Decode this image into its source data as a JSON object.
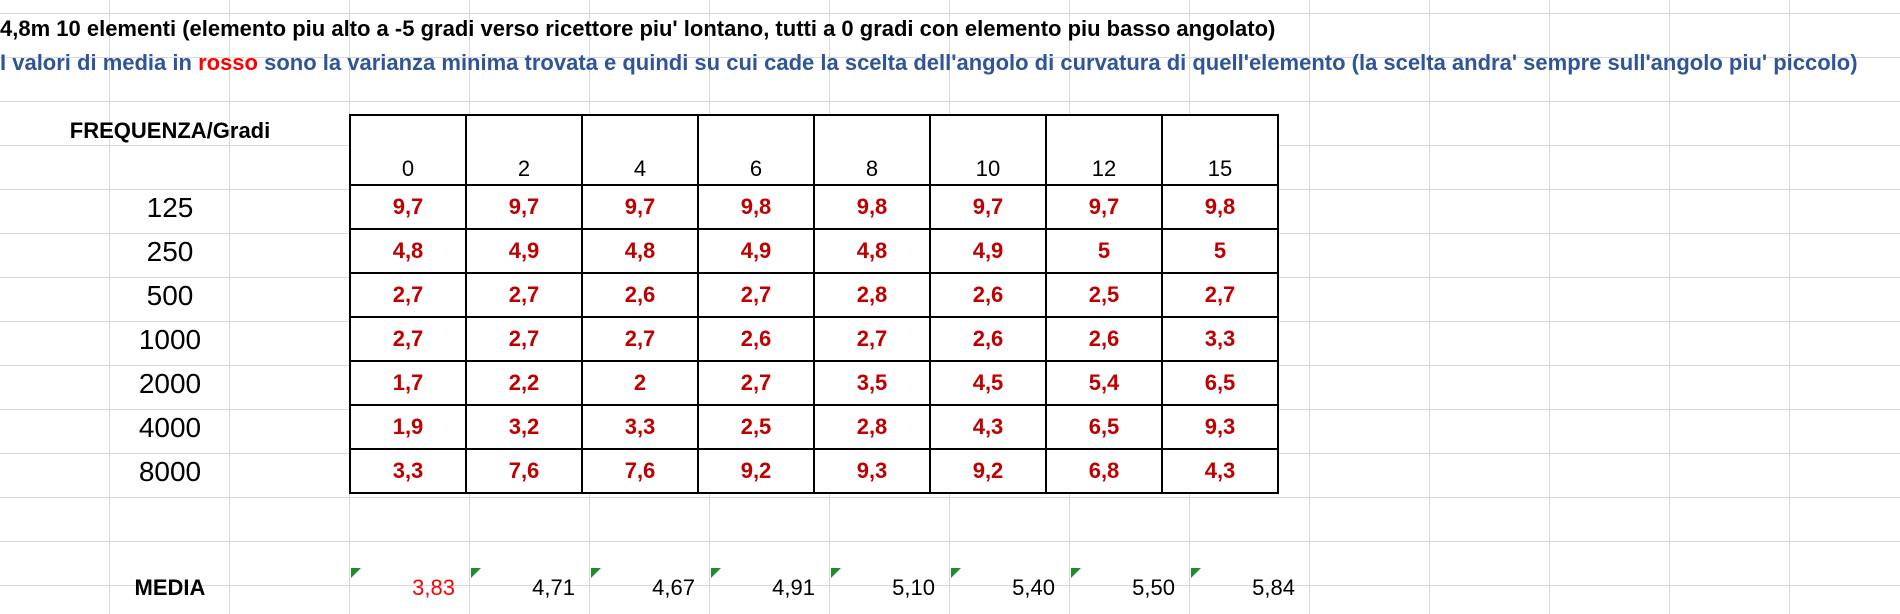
{
  "sheet": {
    "title_line": "4,8m 10 elementi (elemento piu alto a -5 gradi verso ricettore piu' lontano, tutti a 0 gradi con elemento piu basso angolato)",
    "note_line": {
      "prefix": "I valori di media in ",
      "highlight": "rosso",
      "suffix": " sono la varianza minima trovata e quindi su cui cade la scelta dell'angolo di curvatura di quell'elemento (la scelta andra' sempre sull'angolo piu' piccolo)",
      "colors": {
        "text": "#2f5597",
        "highlight": "#ff0000"
      }
    },
    "table": {
      "corner_label": "FREQUENZA/Gradi",
      "angles": [
        "0",
        "2",
        "4",
        "6",
        "8",
        "10",
        "12",
        "15"
      ],
      "rows": [
        {
          "freq": "125",
          "values": [
            "9,7",
            "9,7",
            "9,7",
            "9,8",
            "9,8",
            "9,7",
            "9,7",
            "9,8"
          ]
        },
        {
          "freq": "250",
          "values": [
            "4,8",
            "4,9",
            "4,8",
            "4,9",
            "4,8",
            "4,9",
            "5",
            "5"
          ]
        },
        {
          "freq": "500",
          "values": [
            "2,7",
            "2,7",
            "2,6",
            "2,7",
            "2,8",
            "2,6",
            "2,5",
            "2,7"
          ]
        },
        {
          "freq": "1000",
          "values": [
            "2,7",
            "2,7",
            "2,7",
            "2,6",
            "2,7",
            "2,6",
            "2,6",
            "3,3"
          ]
        },
        {
          "freq": "2000",
          "values": [
            "1,7",
            "2,2",
            "2",
            "2,7",
            "3,5",
            "4,5",
            "5,4",
            "6,5"
          ]
        },
        {
          "freq": "4000",
          "values": [
            "1,9",
            "3,2",
            "3,3",
            "2,5",
            "2,8",
            "4,3",
            "6,5",
            "9,3"
          ]
        },
        {
          "freq": "8000",
          "values": [
            "3,3",
            "7,6",
            "7,6",
            "9,2",
            "9,3",
            "9,2",
            "6,8",
            "4,3"
          ]
        }
      ],
      "value_color": "#c00000"
    },
    "media": {
      "label": "MEDIA",
      "values": [
        "3,83",
        "4,71",
        "4,67",
        "4,91",
        "5,10",
        "5,40",
        "5,50",
        "5,84"
      ],
      "highlight_index": 0,
      "highlight_color": "#ff0000",
      "indicator": "green-corner-triangle"
    }
  }
}
